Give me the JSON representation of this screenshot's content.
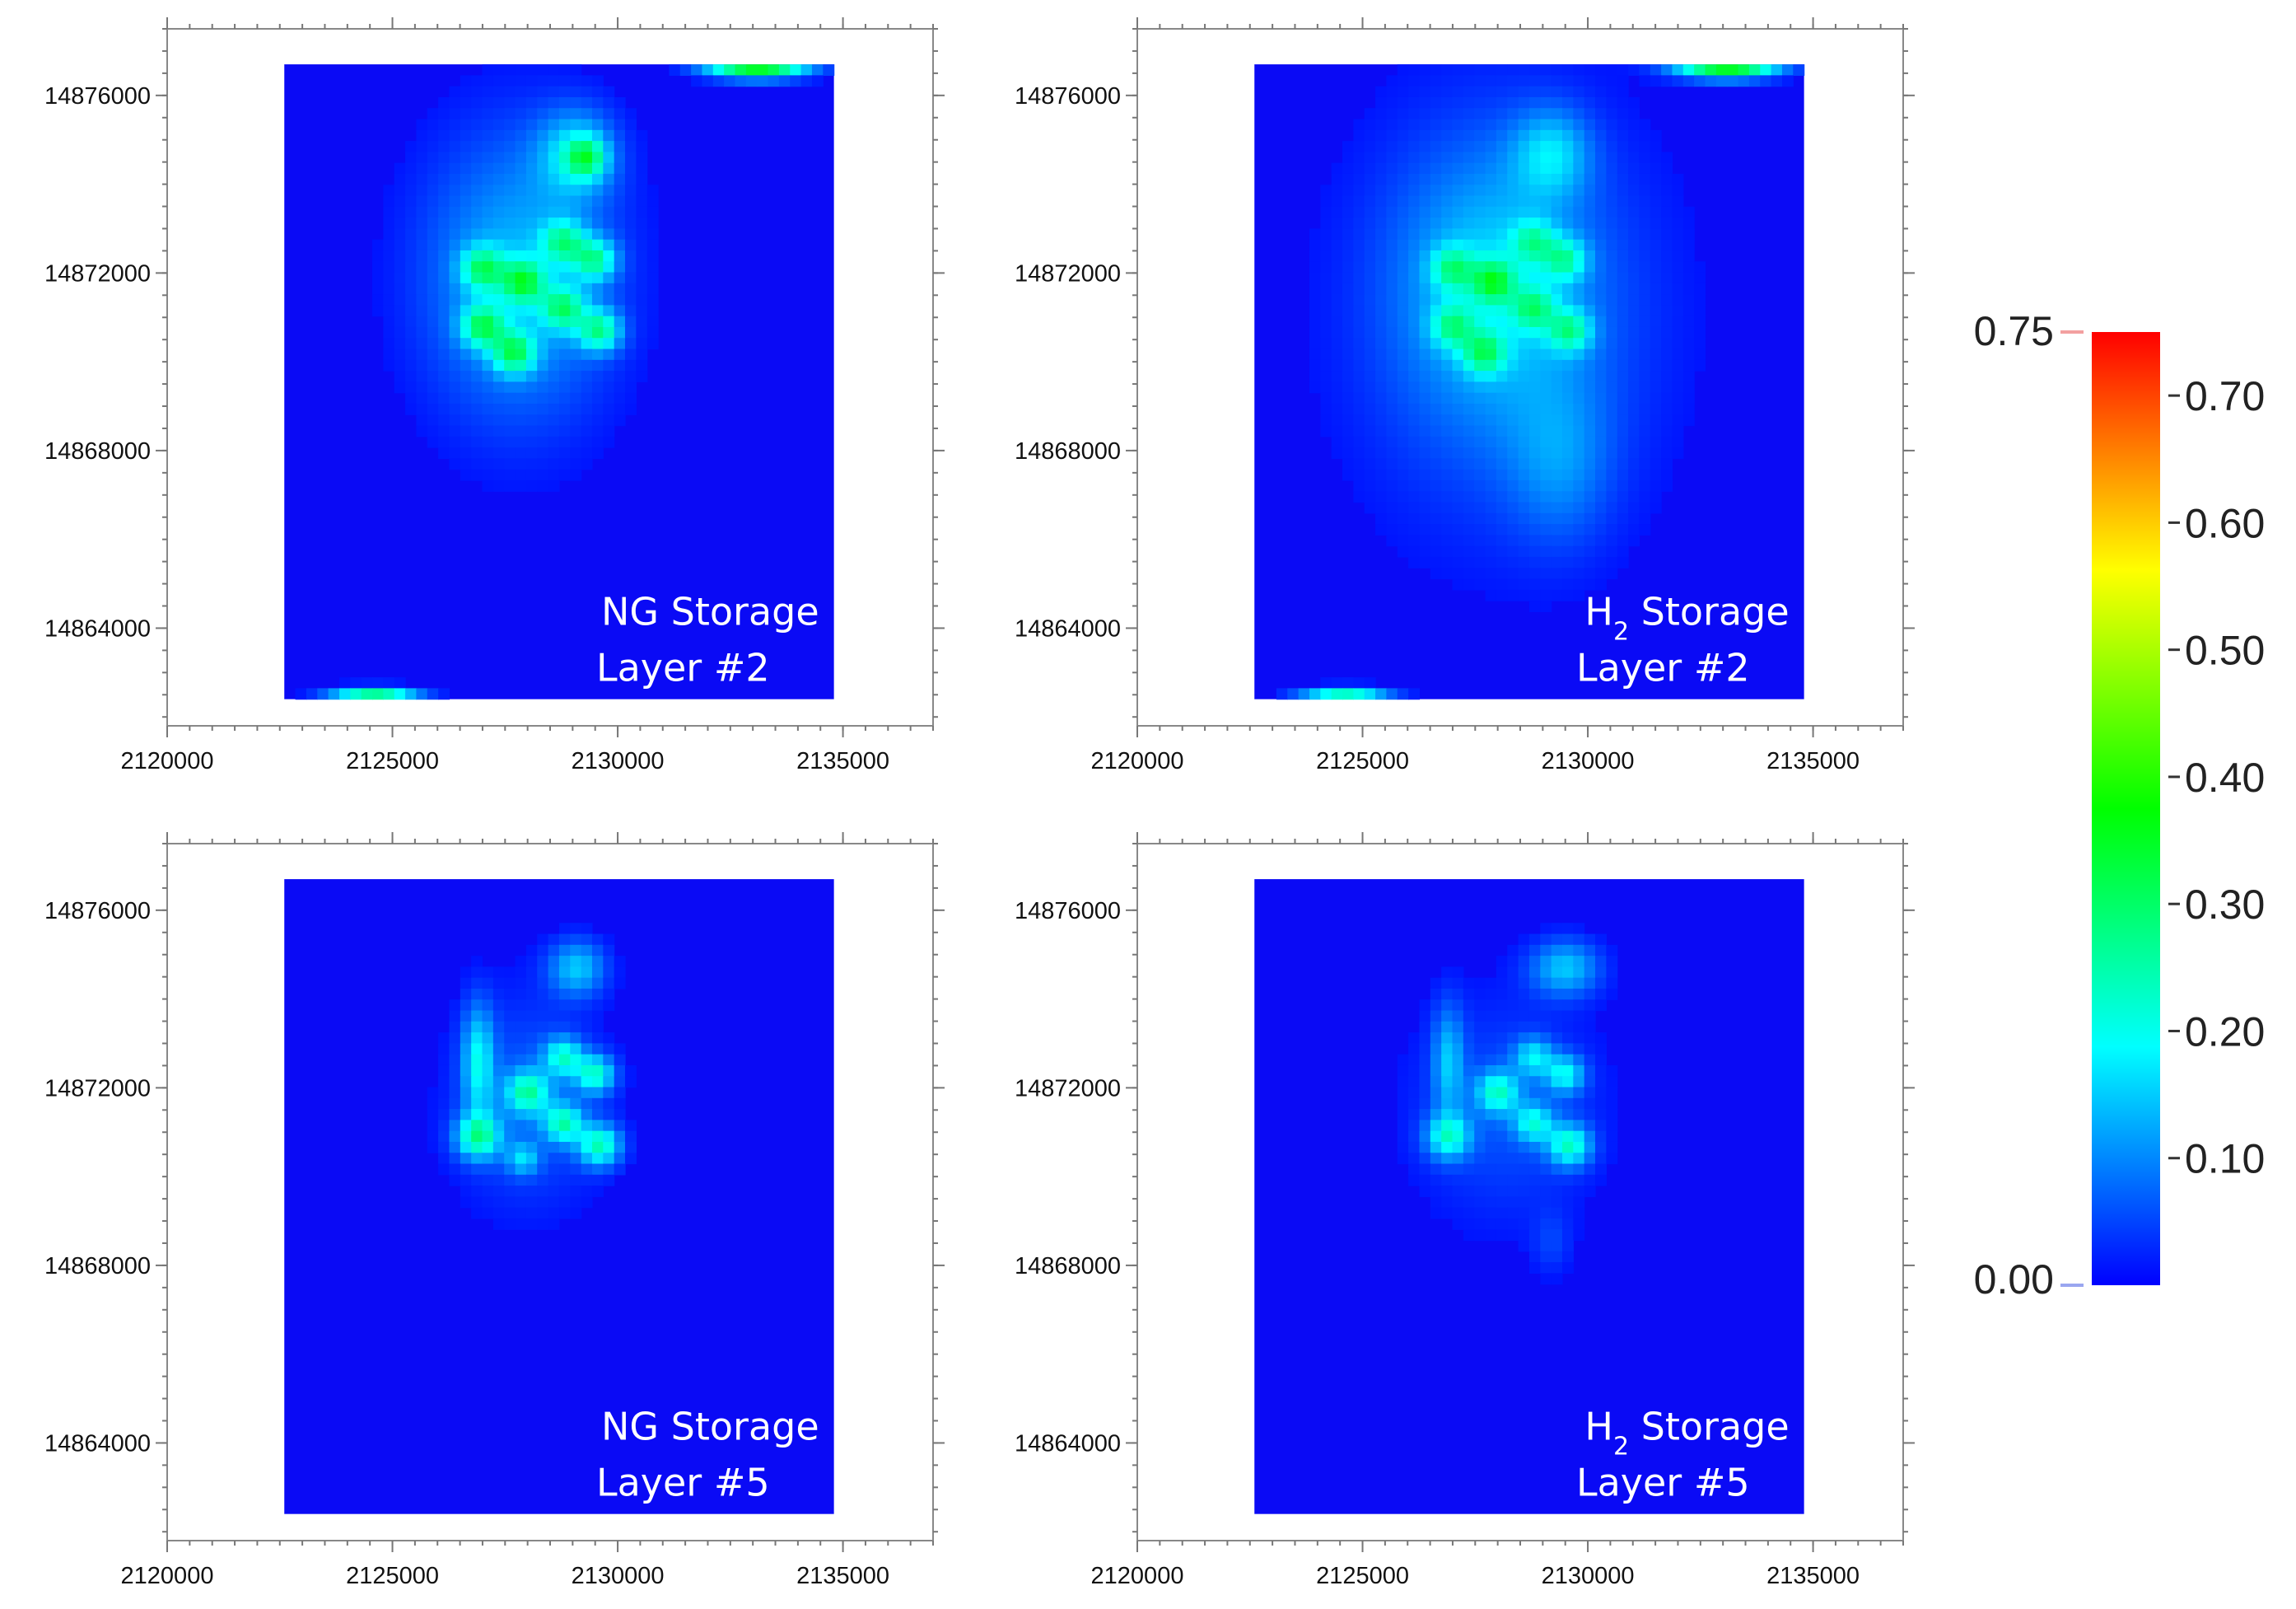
{
  "chart_data": {
    "type": "heatmap",
    "colormap": [
      "#0000ff",
      "#00ffff",
      "#00ff00",
      "#ffff00",
      "#ff0000"
    ],
    "background_color": "#0a0af5",
    "color_range": [
      0.0,
      0.75
    ],
    "colorbar": {
      "min_label": "0.00",
      "max_label": "0.75",
      "ticks": [
        {
          "value": 0.7,
          "label": "0.70"
        },
        {
          "value": 0.6,
          "label": "0.60"
        },
        {
          "value": 0.5,
          "label": "0.50"
        },
        {
          "value": 0.4,
          "label": "0.40"
        },
        {
          "value": 0.3,
          "label": "0.30"
        },
        {
          "value": 0.2,
          "label": "0.20"
        },
        {
          "value": 0.1,
          "label": "0.10"
        }
      ]
    },
    "x_ticks": [
      {
        "value": 2120000,
        "label": "2120000"
      },
      {
        "value": 2125000,
        "label": "2125000"
      },
      {
        "value": 2130000,
        "label": "2130000"
      },
      {
        "value": 2135000,
        "label": "2135000"
      }
    ],
    "y_ticks": [
      {
        "value": 14876000,
        "label": "14876000"
      },
      {
        "value": 14872000,
        "label": "14872000"
      },
      {
        "value": 14868000,
        "label": "14868000"
      },
      {
        "value": 14864000,
        "label": "14864000"
      }
    ],
    "xlim": [
      2120000,
      2137000
    ],
    "ylim": [
      14861800,
      14877500
    ],
    "grid_extent": {
      "x": [
        2122600,
        2134800
      ],
      "y": [
        14862400,
        14876700
      ]
    },
    "panels": [
      {
        "id": "ng-layer-2",
        "label_main": "NG Storage",
        "label_sub": "",
        "label_suffix": "",
        "layer_label": "Layer #2",
        "hotspots": [
          {
            "x": 2127800,
            "y": 14871900,
            "sx": 1500,
            "sy": 2300,
            "v": 0.14
          },
          {
            "x": 2129100,
            "y": 14874700,
            "sx": 600,
            "sy": 700,
            "v": 0.14
          },
          {
            "x": 2127000,
            "y": 14872100,
            "sx": 330,
            "sy": 330,
            "v": 0.2
          },
          {
            "x": 2127900,
            "y": 14871800,
            "sx": 330,
            "sy": 330,
            "v": 0.22
          },
          {
            "x": 2128800,
            "y": 14872700,
            "sx": 330,
            "sy": 330,
            "v": 0.18
          },
          {
            "x": 2129500,
            "y": 14872300,
            "sx": 330,
            "sy": 330,
            "v": 0.2
          },
          {
            "x": 2127000,
            "y": 14870800,
            "sx": 330,
            "sy": 330,
            "v": 0.22
          },
          {
            "x": 2127700,
            "y": 14870200,
            "sx": 330,
            "sy": 330,
            "v": 0.22
          },
          {
            "x": 2128800,
            "y": 14871200,
            "sx": 330,
            "sy": 330,
            "v": 0.2
          },
          {
            "x": 2129600,
            "y": 14870700,
            "sx": 330,
            "sy": 330,
            "v": 0.22
          },
          {
            "x": 2129300,
            "y": 14874600,
            "sx": 300,
            "sy": 300,
            "v": 0.18
          },
          {
            "x": 2133100,
            "y": 14876600,
            "sx": 800,
            "sy": 160,
            "v": 0.35
          },
          {
            "x": 2124600,
            "y": 14862400,
            "sx": 700,
            "sy": 160,
            "v": 0.35
          }
        ]
      },
      {
        "id": "h2-layer-2",
        "label_main": "H",
        "label_sub": "2",
        "label_suffix": " Storage",
        "layer_label": "Layer #2",
        "hotspots": [
          {
            "x": 2128200,
            "y": 14871000,
            "sx": 2300,
            "sy": 3300,
            "v": 0.09
          },
          {
            "x": 2129400,
            "y": 14867700,
            "sx": 800,
            "sy": 1300,
            "v": 0.07
          },
          {
            "x": 2127800,
            "y": 14871900,
            "sx": 1400,
            "sy": 2000,
            "v": 0.08
          },
          {
            "x": 2129200,
            "y": 14874700,
            "sx": 600,
            "sy": 700,
            "v": 0.12
          },
          {
            "x": 2127000,
            "y": 14872100,
            "sx": 330,
            "sy": 330,
            "v": 0.16
          },
          {
            "x": 2127900,
            "y": 14871800,
            "sx": 330,
            "sy": 330,
            "v": 0.2
          },
          {
            "x": 2128800,
            "y": 14872700,
            "sx": 330,
            "sy": 330,
            "v": 0.14
          },
          {
            "x": 2129500,
            "y": 14872300,
            "sx": 330,
            "sy": 330,
            "v": 0.16
          },
          {
            "x": 2127000,
            "y": 14870800,
            "sx": 330,
            "sy": 330,
            "v": 0.16
          },
          {
            "x": 2127700,
            "y": 14870200,
            "sx": 330,
            "sy": 330,
            "v": 0.18
          },
          {
            "x": 2128800,
            "y": 14871200,
            "sx": 330,
            "sy": 330,
            "v": 0.16
          },
          {
            "x": 2129600,
            "y": 14870700,
            "sx": 330,
            "sy": 330,
            "v": 0.18
          },
          {
            "x": 2133100,
            "y": 14876600,
            "sx": 800,
            "sy": 160,
            "v": 0.35
          },
          {
            "x": 2124600,
            "y": 14862400,
            "sx": 700,
            "sy": 160,
            "v": 0.3
          }
        ]
      },
      {
        "id": "ng-layer-5",
        "label_main": "NG Storage",
        "label_sub": "",
        "label_suffix": "",
        "layer_label": "Layer #5",
        "hotspots": [
          {
            "x": 2128000,
            "y": 14871700,
            "sx": 1200,
            "sy": 1700,
            "v": 0.07
          },
          {
            "x": 2129100,
            "y": 14874700,
            "sx": 450,
            "sy": 450,
            "v": 0.14
          },
          {
            "x": 2126900,
            "y": 14872600,
            "sx": 250,
            "sy": 900,
            "v": 0.16
          },
          {
            "x": 2126900,
            "y": 14870900,
            "sx": 350,
            "sy": 350,
            "v": 0.22
          },
          {
            "x": 2128000,
            "y": 14871900,
            "sx": 330,
            "sy": 330,
            "v": 0.2
          },
          {
            "x": 2128800,
            "y": 14872700,
            "sx": 300,
            "sy": 300,
            "v": 0.18
          },
          {
            "x": 2129500,
            "y": 14872300,
            "sx": 300,
            "sy": 300,
            "v": 0.2
          },
          {
            "x": 2128800,
            "y": 14871200,
            "sx": 300,
            "sy": 300,
            "v": 0.2
          },
          {
            "x": 2129600,
            "y": 14870700,
            "sx": 330,
            "sy": 330,
            "v": 0.22
          },
          {
            "x": 2127900,
            "y": 14870400,
            "sx": 250,
            "sy": 250,
            "v": 0.12
          }
        ]
      },
      {
        "id": "h2-layer-5",
        "label_main": "H",
        "label_sub": "2",
        "label_suffix": " Storage",
        "layer_label": "Layer #5",
        "hotspots": [
          {
            "x": 2128200,
            "y": 14871500,
            "sx": 1500,
            "sy": 1800,
            "v": 0.06
          },
          {
            "x": 2129500,
            "y": 14874700,
            "sx": 550,
            "sy": 450,
            "v": 0.14
          },
          {
            "x": 2126900,
            "y": 14872600,
            "sx": 250,
            "sy": 900,
            "v": 0.12
          },
          {
            "x": 2126900,
            "y": 14870900,
            "sx": 350,
            "sy": 350,
            "v": 0.18
          },
          {
            "x": 2128000,
            "y": 14871900,
            "sx": 330,
            "sy": 330,
            "v": 0.18
          },
          {
            "x": 2128800,
            "y": 14872700,
            "sx": 300,
            "sy": 300,
            "v": 0.14
          },
          {
            "x": 2129500,
            "y": 14872300,
            "sx": 300,
            "sy": 300,
            "v": 0.16
          },
          {
            "x": 2128800,
            "y": 14871200,
            "sx": 300,
            "sy": 300,
            "v": 0.16
          },
          {
            "x": 2129600,
            "y": 14870700,
            "sx": 330,
            "sy": 330,
            "v": 0.2
          },
          {
            "x": 2129200,
            "y": 14868500,
            "sx": 300,
            "sy": 500,
            "v": 0.04
          }
        ]
      }
    ]
  }
}
